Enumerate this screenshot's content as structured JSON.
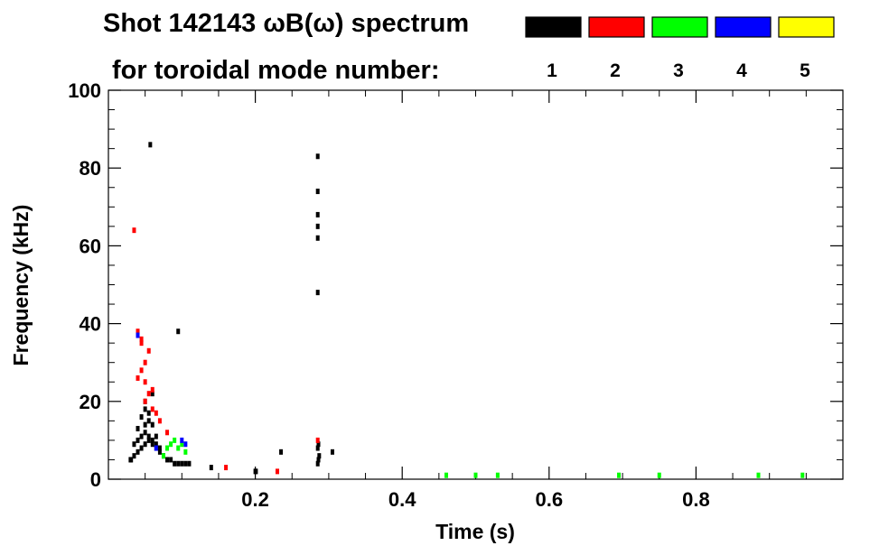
{
  "chart_data": {
    "type": "scatter",
    "title": "Shot 142143 ωB(ω) spectrum",
    "subtitle": "for toroidal mode number:",
    "xlabel": "Time (s)",
    "ylabel": "Frequency (kHz)",
    "xlim": [
      0.0,
      1.0
    ],
    "ylim": [
      0,
      100
    ],
    "xticks": [
      0.2,
      0.4,
      0.6,
      0.8
    ],
    "xtick_labels": [
      "0.2",
      "0.4",
      "0.6",
      "0.8"
    ],
    "yticks": [
      0,
      20,
      40,
      60,
      80,
      100
    ],
    "ytick_labels": [
      "0",
      "20",
      "40",
      "60",
      "80",
      "100"
    ],
    "grid": false,
    "legend_position": "top-right",
    "series": [
      {
        "name": "1",
        "color": "#000000",
        "x": [
          0.03,
          0.035,
          0.04,
          0.045,
          0.05,
          0.055,
          0.06,
          0.065,
          0.07,
          0.075,
          0.08,
          0.085,
          0.09,
          0.095,
          0.1,
          0.105,
          0.11,
          0.04,
          0.045,
          0.05,
          0.055,
          0.06,
          0.065,
          0.07,
          0.05,
          0.055,
          0.06,
          0.045,
          0.05,
          0.055,
          0.04,
          0.05,
          0.06,
          0.035,
          0.065,
          0.14,
          0.2,
          0.201,
          0.285,
          0.286,
          0.287,
          0.285,
          0.286,
          0.285,
          0.285,
          0.285,
          0.285,
          0.285,
          0.285,
          0.057,
          0.095,
          0.235,
          0.305,
          0.031
        ],
        "y": [
          5,
          6,
          7,
          8,
          9,
          10,
          9,
          8,
          7,
          6,
          5,
          5,
          4,
          4,
          4,
          4,
          4,
          10,
          11,
          12,
          11,
          10,
          9,
          8,
          14,
          15,
          14,
          16,
          18,
          17,
          13,
          20,
          22,
          9,
          11,
          3,
          2,
          2,
          4,
          5,
          6,
          8,
          9,
          62,
          65,
          68,
          74,
          83,
          48,
          86,
          38,
          7,
          7,
          5
        ]
      },
      {
        "name": "2",
        "color": "#ff0000",
        "x": [
          0.035,
          0.04,
          0.045,
          0.05,
          0.05,
          0.055,
          0.055,
          0.06,
          0.045,
          0.04,
          0.05,
          0.06,
          0.065,
          0.07,
          0.045,
          0.08,
          0.16,
          0.23,
          0.285
        ],
        "y": [
          64,
          38,
          36,
          30,
          25,
          33,
          22,
          18,
          28,
          26,
          20,
          23,
          17,
          15,
          35,
          12,
          3,
          2,
          10
        ]
      },
      {
        "name": "3",
        "color": "#00ff00",
        "x": [
          0.08,
          0.085,
          0.09,
          0.095,
          0.1,
          0.105,
          0.075,
          0.46,
          0.5,
          0.53,
          0.695,
          0.75,
          0.885,
          0.945
        ],
        "y": [
          8,
          9,
          10,
          8,
          9,
          7,
          6,
          1,
          1,
          1,
          1,
          1,
          1,
          1
        ]
      },
      {
        "name": "4",
        "color": "#0000ff",
        "x": [
          0.04,
          0.1,
          0.105,
          0.065
        ],
        "y": [
          37,
          10,
          9,
          8
        ]
      },
      {
        "name": "5",
        "color": "#ffff00",
        "x": [],
        "y": []
      }
    ]
  }
}
